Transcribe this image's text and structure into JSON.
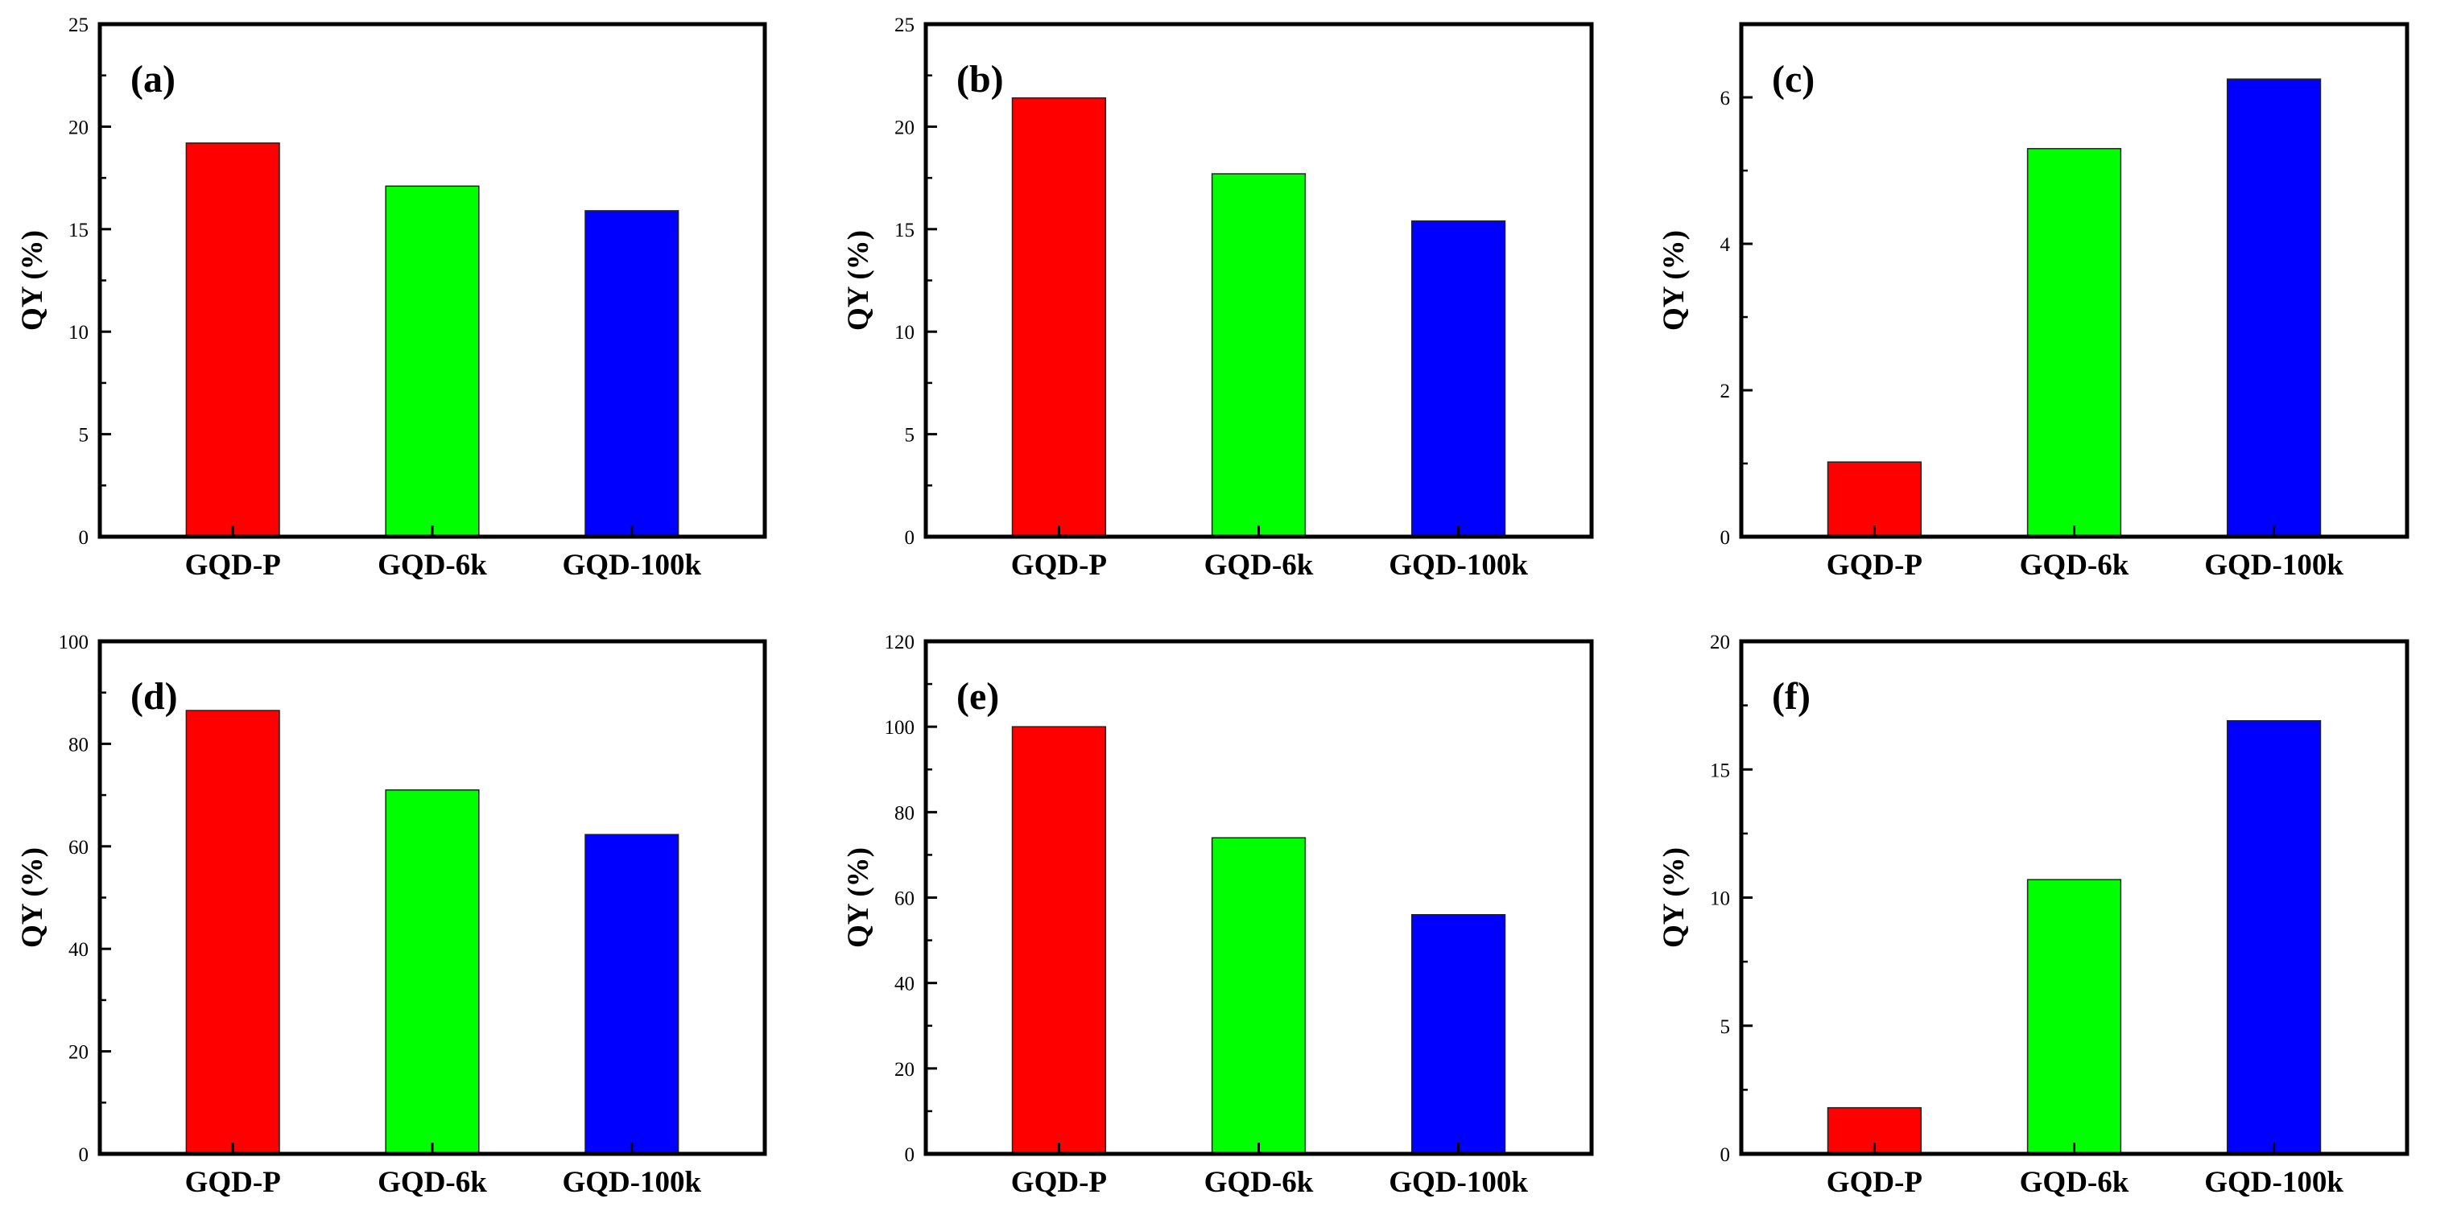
{
  "chart_data": [
    {
      "panel": "(a)",
      "type": "bar",
      "categories": [
        "GQD-P",
        "GQD-6k",
        "GQD-100k"
      ],
      "values": [
        19.2,
        17.1,
        15.9
      ],
      "ylabel": "QY (%)",
      "ylim": [
        0,
        25
      ],
      "yticks": [
        0,
        5,
        10,
        15,
        20,
        25
      ],
      "colors": [
        "#ff0000",
        "#00ff00",
        "#0000ff"
      ]
    },
    {
      "panel": "(b)",
      "type": "bar",
      "categories": [
        "GQD-P",
        "GQD-6k",
        "GQD-100k"
      ],
      "values": [
        21.4,
        17.7,
        15.4
      ],
      "ylabel": "QY (%)",
      "ylim": [
        0,
        25
      ],
      "yticks": [
        0,
        5,
        10,
        15,
        20,
        25
      ],
      "colors": [
        "#ff0000",
        "#00ff00",
        "#0000ff"
      ]
    },
    {
      "panel": "(c)",
      "type": "bar",
      "categories": [
        "GQD-P",
        "GQD-6k",
        "GQD-100k"
      ],
      "values": [
        1.02,
        5.3,
        6.25
      ],
      "ylabel": "QY (%)",
      "ylim": [
        0,
        7
      ],
      "yticks": [
        0,
        2,
        4,
        6
      ],
      "colors": [
        "#ff0000",
        "#00ff00",
        "#0000ff"
      ]
    },
    {
      "panel": "(d)",
      "type": "bar",
      "categories": [
        "GQD-P",
        "GQD-6k",
        "GQD-100k"
      ],
      "values": [
        86.5,
        71.0,
        62.3
      ],
      "ylabel": "QY (%)",
      "ylim": [
        0,
        100
      ],
      "yticks": [
        0,
        20,
        40,
        60,
        80,
        100
      ],
      "colors": [
        "#ff0000",
        "#00ff00",
        "#0000ff"
      ]
    },
    {
      "panel": "(e)",
      "type": "bar",
      "categories": [
        "GQD-P",
        "GQD-6k",
        "GQD-100k"
      ],
      "values": [
        100.0,
        74.0,
        56.0
      ],
      "ylabel": "QY (%)",
      "ylim": [
        0,
        120
      ],
      "yticks": [
        0,
        20,
        40,
        60,
        80,
        100,
        120
      ],
      "colors": [
        "#ff0000",
        "#00ff00",
        "#0000ff"
      ]
    },
    {
      "panel": "(f)",
      "type": "bar",
      "categories": [
        "GQD-P",
        "GQD-6k",
        "GQD-100k"
      ],
      "values": [
        1.8,
        10.7,
        16.9
      ],
      "ylabel": "QY (%)",
      "ylim": [
        0,
        20
      ],
      "yticks": [
        0,
        5,
        10,
        15,
        20
      ],
      "colors": [
        "#ff0000",
        "#00ff00",
        "#0000ff"
      ]
    }
  ]
}
